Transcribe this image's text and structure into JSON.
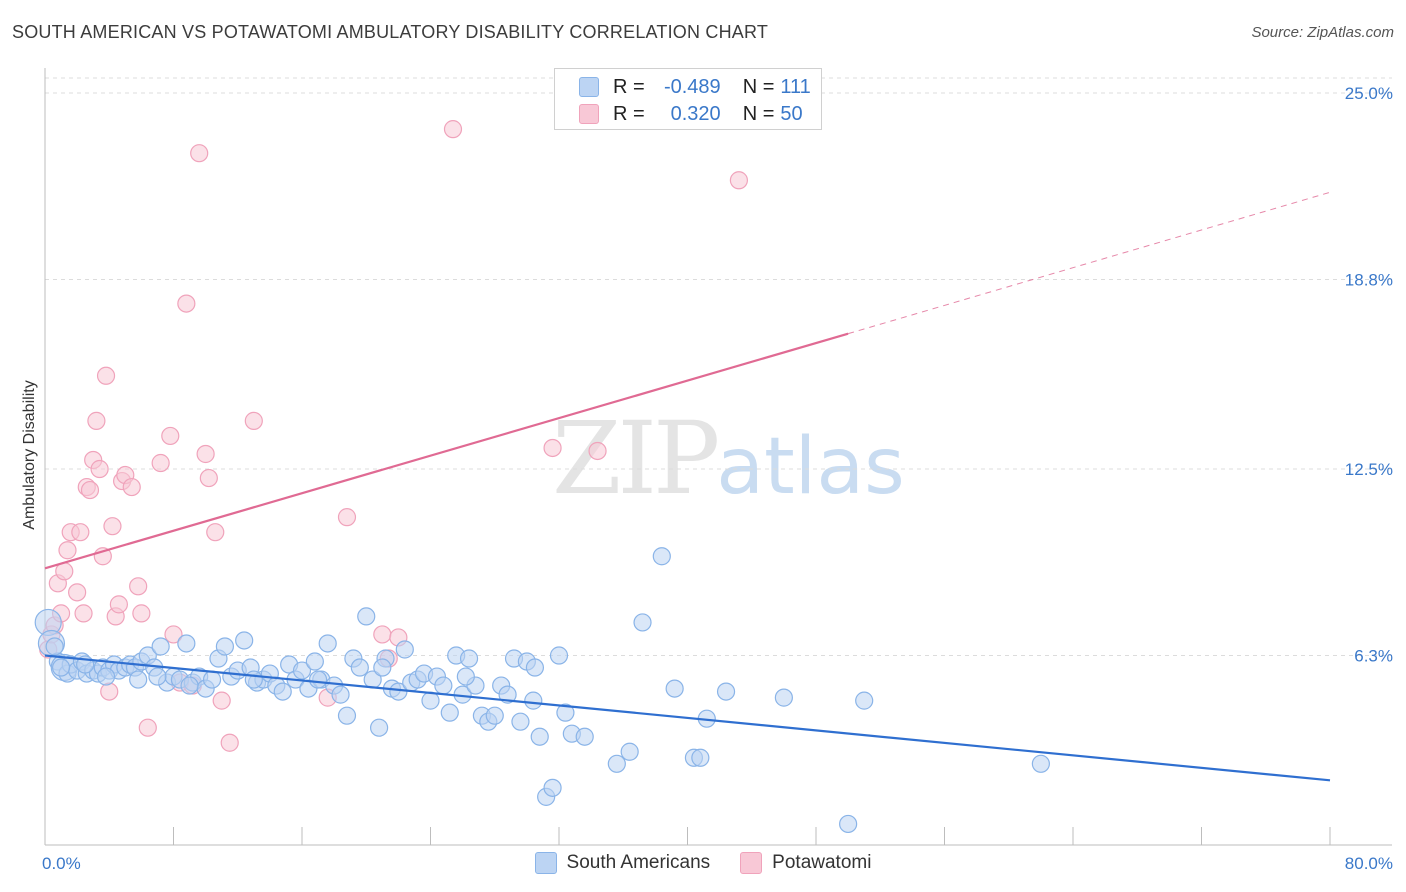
{
  "chart_data": {
    "type": "scatter",
    "title": "SOUTH AMERICAN VS POTAWATOMI AMBULATORY DISABILITY CORRELATION CHART",
    "source": "Source: ZipAtlas.com",
    "ylabel": "Ambulatory Disability",
    "xlim": [
      0,
      80
    ],
    "ylim": [
      0,
      25.5
    ],
    "yticks": [
      {
        "value": 25.0,
        "label": "25.0%"
      },
      {
        "value": 18.8,
        "label": "18.8%"
      },
      {
        "value": 12.5,
        "label": "12.5%"
      },
      {
        "value": 6.3,
        "label": "6.3%"
      }
    ],
    "xticks": [
      {
        "value": 0,
        "label": "0.0%"
      },
      {
        "value": 80,
        "label": "80.0%"
      }
    ],
    "series": [
      {
        "name": "South Americans",
        "color": "#8ab4e8",
        "fill": "#bcd4f3",
        "line_color": "#2f6fd0",
        "R": "-0.489",
        "N": "111",
        "trend": {
          "x0": 0,
          "y0": 6.3,
          "x1": 80,
          "y1": 2.15
        },
        "points": [
          [
            0.2,
            7.4
          ],
          [
            0.4,
            6.7
          ],
          [
            0.8,
            6.1
          ],
          [
            1.2,
            5.9
          ],
          [
            1.4,
            5.7
          ],
          [
            1.6,
            6.0
          ],
          [
            2.0,
            5.8
          ],
          [
            2.3,
            6.1
          ],
          [
            2.6,
            5.7
          ],
          [
            3.0,
            5.8
          ],
          [
            3.3,
            5.7
          ],
          [
            3.6,
            5.9
          ],
          [
            4.0,
            5.8
          ],
          [
            4.3,
            6.0
          ],
          [
            4.6,
            5.8
          ],
          [
            5.0,
            5.9
          ],
          [
            5.3,
            6.0
          ],
          [
            5.6,
            5.9
          ],
          [
            6.0,
            6.1
          ],
          [
            6.4,
            6.3
          ],
          [
            6.8,
            5.9
          ],
          [
            7.2,
            6.6
          ],
          [
            7.6,
            5.4
          ],
          [
            8.0,
            5.6
          ],
          [
            8.4,
            5.5
          ],
          [
            8.8,
            6.7
          ],
          [
            9.2,
            5.4
          ],
          [
            9.6,
            5.6
          ],
          [
            10.0,
            5.2
          ],
          [
            10.4,
            5.5
          ],
          [
            10.8,
            6.2
          ],
          [
            11.2,
            6.6
          ],
          [
            11.6,
            5.6
          ],
          [
            12.0,
            5.8
          ],
          [
            12.4,
            6.8
          ],
          [
            12.8,
            5.9
          ],
          [
            13.2,
            5.4
          ],
          [
            13.6,
            5.5
          ],
          [
            14.0,
            5.7
          ],
          [
            14.4,
            5.3
          ],
          [
            14.8,
            5.1
          ],
          [
            15.2,
            6.0
          ],
          [
            15.6,
            5.5
          ],
          [
            16.0,
            5.8
          ],
          [
            16.4,
            5.2
          ],
          [
            16.8,
            6.1
          ],
          [
            17.2,
            5.5
          ],
          [
            17.6,
            6.7
          ],
          [
            18.0,
            5.3
          ],
          [
            18.4,
            5.0
          ],
          [
            18.8,
            4.3
          ],
          [
            19.2,
            6.2
          ],
          [
            19.6,
            5.9
          ],
          [
            20.0,
            7.6
          ],
          [
            20.4,
            5.5
          ],
          [
            20.8,
            3.9
          ],
          [
            21.2,
            6.2
          ],
          [
            21.6,
            5.2
          ],
          [
            22.0,
            5.1
          ],
          [
            22.4,
            6.5
          ],
          [
            22.8,
            5.4
          ],
          [
            23.2,
            5.5
          ],
          [
            23.6,
            5.7
          ],
          [
            24.0,
            4.8
          ],
          [
            24.4,
            5.6
          ],
          [
            24.8,
            5.3
          ],
          [
            25.2,
            4.4
          ],
          [
            25.6,
            6.3
          ],
          [
            26.0,
            5.0
          ],
          [
            26.4,
            6.2
          ],
          [
            26.8,
            5.3
          ],
          [
            27.2,
            4.3
          ],
          [
            27.6,
            4.1
          ],
          [
            28.0,
            4.3
          ],
          [
            28.4,
            5.3
          ],
          [
            28.8,
            5.0
          ],
          [
            29.2,
            6.2
          ],
          [
            29.6,
            4.1
          ],
          [
            30.0,
            6.1
          ],
          [
            30.4,
            4.8
          ],
          [
            30.8,
            3.6
          ],
          [
            31.2,
            1.6
          ],
          [
            31.6,
            1.9
          ],
          [
            32.0,
            6.3
          ],
          [
            32.4,
            4.4
          ],
          [
            32.8,
            3.7
          ],
          [
            33.6,
            3.6
          ],
          [
            35.6,
            2.7
          ],
          [
            36.4,
            3.1
          ],
          [
            37.2,
            7.4
          ],
          [
            38.4,
            9.6
          ],
          [
            39.2,
            5.2
          ],
          [
            40.4,
            2.9
          ],
          [
            40.8,
            2.9
          ],
          [
            41.2,
            4.2
          ],
          [
            42.4,
            5.1
          ],
          [
            46.0,
            4.9
          ],
          [
            50.0,
            0.7
          ],
          [
            51.0,
            4.8
          ],
          [
            62.0,
            2.7
          ],
          [
            0.6,
            6.6
          ],
          [
            1.0,
            5.9
          ],
          [
            2.5,
            6.0
          ],
          [
            3.8,
            5.6
          ],
          [
            5.8,
            5.5
          ],
          [
            7.0,
            5.6
          ],
          [
            9.0,
            5.3
          ],
          [
            13.0,
            5.5
          ],
          [
            17.0,
            5.5
          ],
          [
            21.0,
            5.9
          ],
          [
            26.2,
            5.6
          ],
          [
            30.5,
            5.9
          ]
        ],
        "big_points": [
          [
            0.2,
            7.4
          ],
          [
            0.4,
            6.7
          ],
          [
            1.2,
            5.9
          ]
        ]
      },
      {
        "name": "Potawatomi",
        "color": "#f0a3bb",
        "fill": "#f8c8d6",
        "line_color": "#e06a93",
        "R": "0.320",
        "N": "50",
        "trend": {
          "x0": 0,
          "y0": 9.2,
          "x1": 50,
          "y1": 17.0
        },
        "trend_dash": {
          "x0": 50,
          "y0": 17.0,
          "x1": 80,
          "y1": 21.7
        },
        "points": [
          [
            0.2,
            6.5
          ],
          [
            0.4,
            7.0
          ],
          [
            0.6,
            7.3
          ],
          [
            0.8,
            8.7
          ],
          [
            1.0,
            7.7
          ],
          [
            1.2,
            9.1
          ],
          [
            1.4,
            9.8
          ],
          [
            1.6,
            10.4
          ],
          [
            2.0,
            8.4
          ],
          [
            2.2,
            10.4
          ],
          [
            2.4,
            7.7
          ],
          [
            2.6,
            11.9
          ],
          [
            2.8,
            11.8
          ],
          [
            3.0,
            12.8
          ],
          [
            3.2,
            14.1
          ],
          [
            3.4,
            12.5
          ],
          [
            3.6,
            9.6
          ],
          [
            3.8,
            15.6
          ],
          [
            4.0,
            5.1
          ],
          [
            4.2,
            10.6
          ],
          [
            4.4,
            7.6
          ],
          [
            4.6,
            8.0
          ],
          [
            4.8,
            12.1
          ],
          [
            5.0,
            12.3
          ],
          [
            5.4,
            11.9
          ],
          [
            5.8,
            8.6
          ],
          [
            6.0,
            7.7
          ],
          [
            6.4,
            3.9
          ],
          [
            7.2,
            12.7
          ],
          [
            7.8,
            13.6
          ],
          [
            8.0,
            7.0
          ],
          [
            8.4,
            5.4
          ],
          [
            8.8,
            18.0
          ],
          [
            9.2,
            5.3
          ],
          [
            9.6,
            23.0
          ],
          [
            10.0,
            13.0
          ],
          [
            10.2,
            12.2
          ],
          [
            10.6,
            10.4
          ],
          [
            11.0,
            4.8
          ],
          [
            11.5,
            3.4
          ],
          [
            13.0,
            14.1
          ],
          [
            17.6,
            4.9
          ],
          [
            18.8,
            10.9
          ],
          [
            21.0,
            7.0
          ],
          [
            21.4,
            6.2
          ],
          [
            22.0,
            6.9
          ],
          [
            25.4,
            23.8
          ],
          [
            31.6,
            13.2
          ],
          [
            34.4,
            13.1
          ],
          [
            43.2,
            22.1
          ]
        ]
      }
    ]
  },
  "legend": {
    "r_label": "R =",
    "n_label": "N ="
  },
  "watermark": {
    "zip": "ZIP",
    "atlas": "atlas"
  }
}
